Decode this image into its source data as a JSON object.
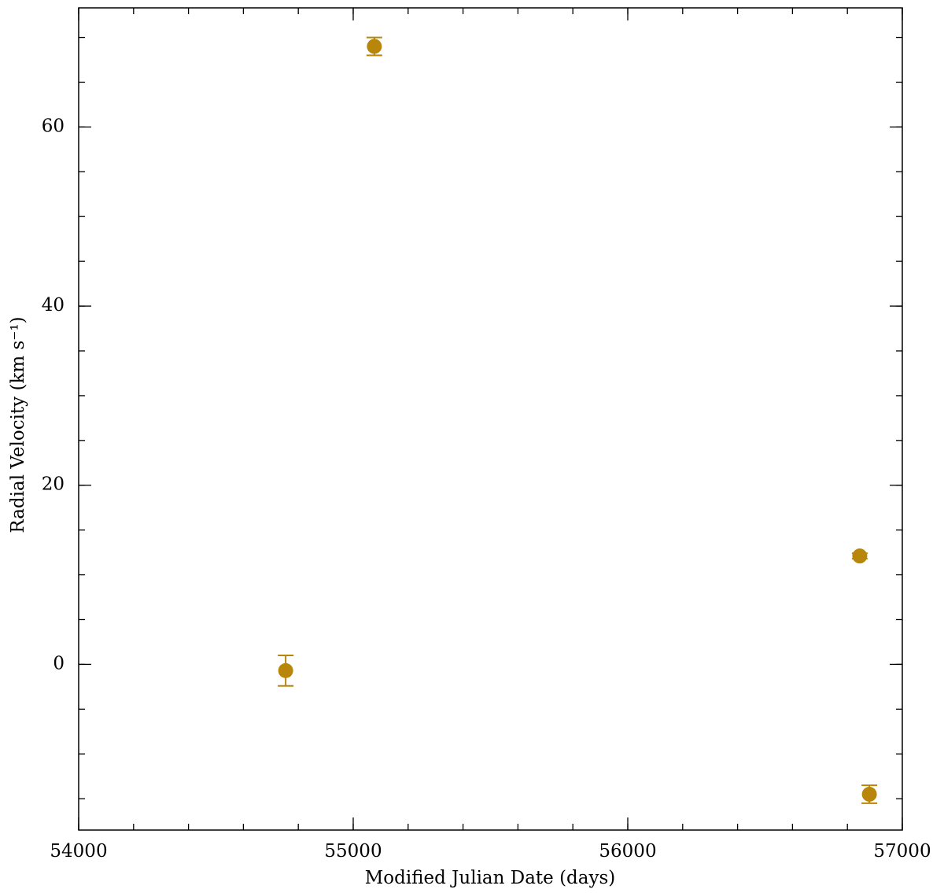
{
  "chart_data": {
    "type": "scatter",
    "xlabel": "Modified Julian Date (days)",
    "ylabel": "Radial Velocity (km s⁻¹)",
    "x": [
      54754,
      55077,
      56845,
      56880
    ],
    "values": [
      -0.7,
      69.0,
      12.1,
      -14.5
    ],
    "errors": [
      1.7,
      1.0,
      0.3,
      1.0
    ],
    "color": "#b8860b",
    "xlim": [
      54000,
      57000
    ],
    "xticks": [
      54000,
      55000,
      56000,
      57000
    ],
    "ylim": [
      -18.5,
      73.3
    ],
    "yticks": [
      0,
      20,
      40,
      60
    ]
  }
}
